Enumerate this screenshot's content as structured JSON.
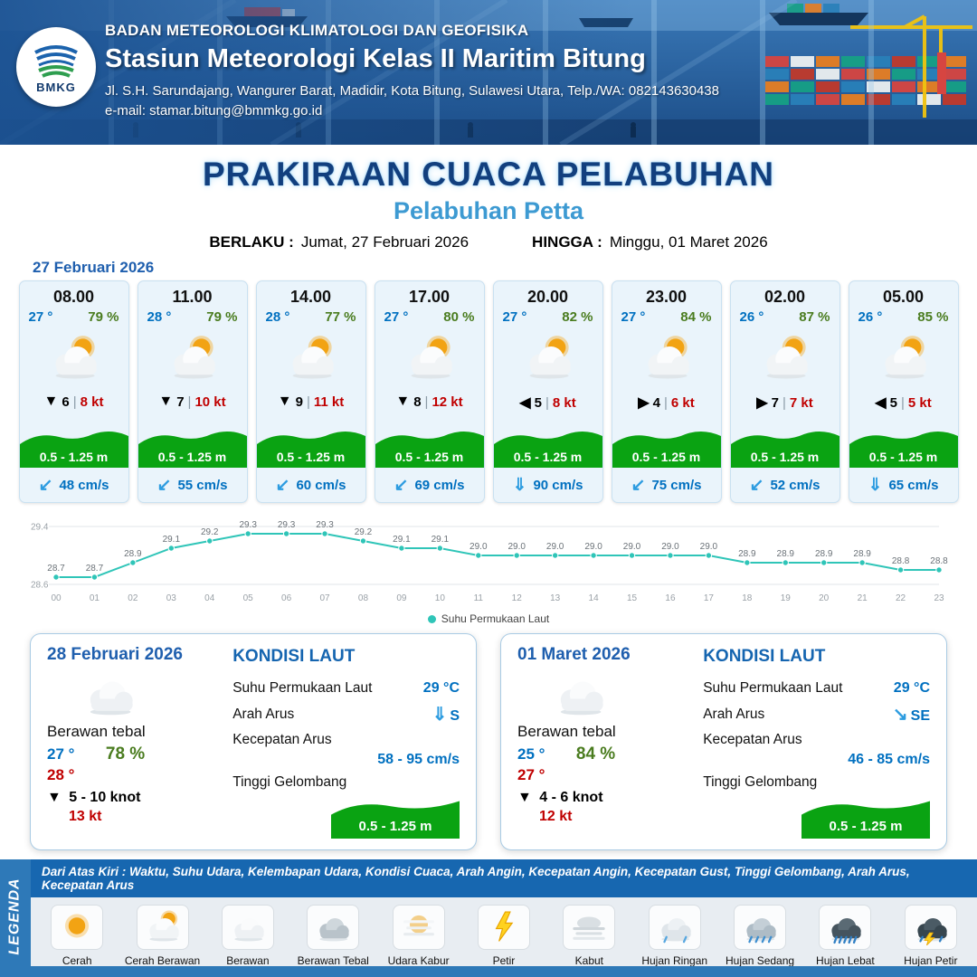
{
  "colors": {
    "temp_blue": "#0070c0",
    "humidity_green": "#4a7c1f",
    "gust_red": "#c00000",
    "wave_green": "#0aa312",
    "current_blue": "#2d9ce0",
    "chart_teal": "#2fc5b8",
    "title_blue": "#123f7e",
    "subtitle_blue": "#3d9ad2",
    "date_blue": "#1f5fae",
    "legend_bar_blue": "#1767b0",
    "side_bar_blue": "#2e79b8"
  },
  "header": {
    "logo": "BMKG",
    "agency": "BADAN METEOROLOGI KLIMATOLOGI DAN GEOFISIKA",
    "station": "Stasiun Meteorologi Kelas II Maritim Bitung",
    "address": "Jl. S.H. Sarundajang, Wangurer Barat, Madidir, Kota Bitung, Sulawesi Utara, Telp./WA: 082143630438",
    "email": "e-mail: stamar.bitung@bmmkg.go.id"
  },
  "title": {
    "main": "PRAKIRAAN CUACA PELABUHAN",
    "port": "Pelabuhan Petta",
    "berlaku_label": "BERLAKU :",
    "berlaku_value": "Jumat, 27 Februari 2026",
    "hingga_label": "HINGGA :",
    "hingga_value": "Minggu, 01 Maret 2026"
  },
  "forecast_date": "27 Februari 2026",
  "forecast_cards": [
    {
      "time": "08.00",
      "temp": "27 °",
      "rh": "79 %",
      "icon": "sun-cloud",
      "dir_glyph": "▼",
      "wind": "6",
      "gust": "8 kt",
      "wave": "0.5 - 1.25 m",
      "cur_glyph": "↙",
      "current": "48 cm/s"
    },
    {
      "time": "11.00",
      "temp": "28 °",
      "rh": "79 %",
      "icon": "sun-cloud",
      "dir_glyph": "▼",
      "wind": "7",
      "gust": "10 kt",
      "wave": "0.5 - 1.25 m",
      "cur_glyph": "↙",
      "current": "55 cm/s"
    },
    {
      "time": "14.00",
      "temp": "28 °",
      "rh": "77 %",
      "icon": "sun-cloud",
      "dir_glyph": "▼",
      "wind": "9",
      "gust": "11 kt",
      "wave": "0.5 - 1.25 m",
      "cur_glyph": "↙",
      "current": "60 cm/s"
    },
    {
      "time": "17.00",
      "temp": "27 °",
      "rh": "80 %",
      "icon": "sun-cloud",
      "dir_glyph": "▼",
      "wind": "8",
      "gust": "12 kt",
      "wave": "0.5 - 1.25 m",
      "cur_glyph": "↙",
      "current": "69 cm/s"
    },
    {
      "time": "20.00",
      "temp": "27 °",
      "rh": "82 %",
      "icon": "sun-cloud",
      "dir_glyph": "◀",
      "wind": "5",
      "gust": "8 kt",
      "wave": "0.5 - 1.25 m",
      "cur_glyph": "⇓",
      "current": "90 cm/s"
    },
    {
      "time": "23.00",
      "temp": "27 °",
      "rh": "84 %",
      "icon": "sun-cloud",
      "dir_glyph": "▶",
      "wind": "4",
      "gust": "6 kt",
      "wave": "0.5 - 1.25 m",
      "cur_glyph": "↙",
      "current": "75 cm/s"
    },
    {
      "time": "02.00",
      "temp": "26 °",
      "rh": "87 %",
      "icon": "sun-cloud",
      "dir_glyph": "▶",
      "wind": "7",
      "gust": "7 kt",
      "wave": "0.5 - 1.25 m",
      "cur_glyph": "↙",
      "current": "52 cm/s"
    },
    {
      "time": "05.00",
      "temp": "26 °",
      "rh": "85 %",
      "icon": "sun-cloud",
      "dir_glyph": "◀",
      "wind": "5",
      "gust": "5 kt",
      "wave": "0.5 - 1.25 m",
      "cur_glyph": "⇓",
      "current": "65 cm/s"
    }
  ],
  "chart_data": {
    "type": "line",
    "legend": "Suhu Permukaan Laut",
    "x": [
      "00",
      "01",
      "02",
      "03",
      "04",
      "05",
      "06",
      "07",
      "08",
      "09",
      "10",
      "11",
      "12",
      "13",
      "14",
      "15",
      "16",
      "17",
      "18",
      "19",
      "20",
      "21",
      "22",
      "23"
    ],
    "values": [
      28.7,
      28.7,
      28.9,
      29.1,
      29.2,
      29.3,
      29.3,
      29.3,
      29.2,
      29.1,
      29.1,
      29.0,
      29.0,
      29.0,
      29.0,
      29.0,
      29.0,
      29.0,
      28.9,
      28.9,
      28.9,
      28.9,
      28.8,
      28.8
    ],
    "ylim": [
      28.6,
      29.4
    ],
    "yticks": [
      28.6,
      29.4
    ],
    "color": "#2fc5b8"
  },
  "days": [
    {
      "date": "28 Februari 2026",
      "icon": "cloud",
      "condition": "Berawan tebal",
      "temp_min": "27 °",
      "rh": "78 %",
      "temp_max": "28 °",
      "wind_glyph": "▼",
      "wind_range": "5  - 10 knot",
      "gust": "13 kt",
      "sea_title": "KONDISI LAUT",
      "sst_label": "Suhu Permukaan Laut",
      "sst": "29 °C",
      "arah_label": "Arah Arus",
      "arah_glyph": "⇓",
      "arah": "S",
      "kec_label": "Kecepatan Arus",
      "kec": "58 - 95 cm/s",
      "wave_label": "Tinggi Gelombang",
      "wave": "0.5 - 1.25 m"
    },
    {
      "date": "01 Maret 2026",
      "icon": "cloud",
      "condition": "Berawan tebal",
      "temp_min": "25 °",
      "rh": "84 %",
      "temp_max": "27 °",
      "wind_glyph": "▼",
      "wind_range": "4  - 6 knot",
      "gust": "12 kt",
      "sea_title": "KONDISI LAUT",
      "sst_label": "Suhu Permukaan Laut",
      "sst": "29 °C",
      "arah_label": "Arah Arus",
      "arah_glyph": "↘",
      "arah": "SE",
      "kec_label": "Kecepatan Arus",
      "kec": "46 - 85 cm/s",
      "wave_label": "Tinggi Gelombang",
      "wave": "0.5 - 1.25 m"
    }
  ],
  "legend": {
    "title": "LEGENDA",
    "description": "Dari Atas Kiri : Waktu, Suhu Udara, Kelembapan Udara, Kondisi Cuaca, Arah Angin, Kecepatan Angin, Kecepatan Gust, Tinggi Gelombang, Arah Arus, Kecepatan Arus",
    "items": [
      {
        "label": "Cerah",
        "icon": "sun"
      },
      {
        "label": "Cerah Berawan",
        "icon": "sun-cloud"
      },
      {
        "label": "Berawan",
        "icon": "cloud"
      },
      {
        "label": "Berawan Tebal",
        "icon": "cloud-dark"
      },
      {
        "label": "Udara Kabur",
        "icon": "haze"
      },
      {
        "label": "Petir",
        "icon": "lightning"
      },
      {
        "label": "Kabut",
        "icon": "fog"
      },
      {
        "label": "Hujan Ringan",
        "icon": "rain-light"
      },
      {
        "label": "Hujan Sedang",
        "icon": "rain-medium"
      },
      {
        "label": "Hujan Lebat",
        "icon": "rain-heavy"
      },
      {
        "label": "Hujan Petir",
        "icon": "storm"
      }
    ]
  }
}
